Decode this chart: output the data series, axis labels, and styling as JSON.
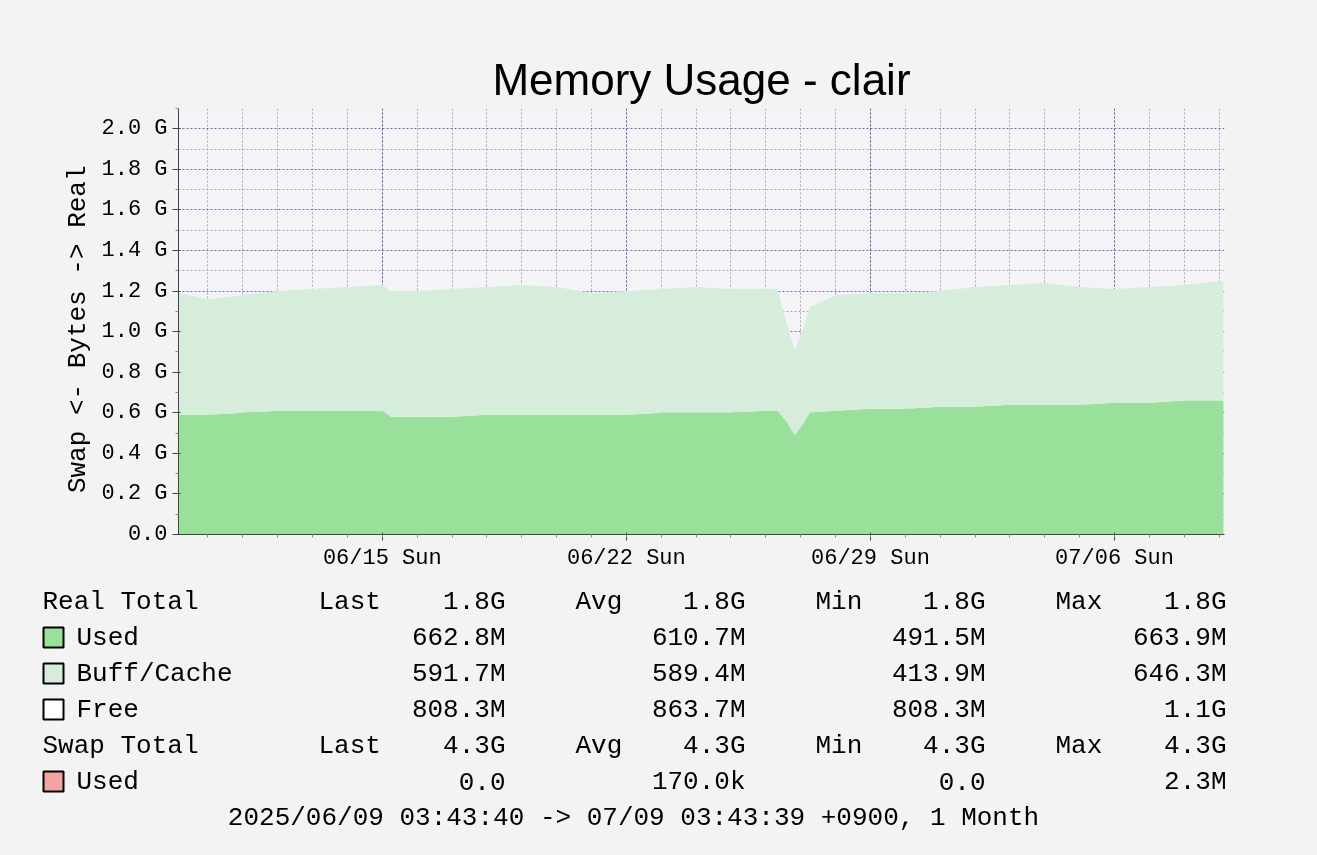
{
  "chart_data": {
    "type": "area",
    "stacked": true,
    "title": "Memory Usage - clair",
    "ylabel": "Swap <-  Bytes -> Real",
    "x": [
      "2025-06-09T04:00",
      "2025-06-10",
      "2025-06-11",
      "2025-06-12",
      "2025-06-13",
      "2025-06-14",
      "2025-06-15",
      "2025-06-15T06:00",
      "2025-06-16",
      "2025-06-17",
      "2025-06-18",
      "2025-06-19",
      "2025-06-20",
      "2025-06-21",
      "2025-06-22",
      "2025-06-23",
      "2025-06-24",
      "2025-06-25",
      "2025-06-26",
      "2025-06-26T08:00",
      "2025-06-26T14:00",
      "2025-06-26T20:00",
      "2025-06-27T02:00",
      "2025-06-27T06:00",
      "2025-06-28",
      "2025-06-29",
      "2025-06-30",
      "2025-07-01",
      "2025-07-02",
      "2025-07-03",
      "2025-07-04",
      "2025-07-05",
      "2025-07-06",
      "2025-07-07",
      "2025-07-08",
      "2025-07-09T03:00"
    ],
    "series": [
      {
        "name": "Used",
        "color": "#99e19b",
        "values": [
          0.59,
          0.59,
          0.6,
          0.61,
          0.61,
          0.61,
          0.61,
          0.58,
          0.58,
          0.58,
          0.59,
          0.59,
          0.59,
          0.59,
          0.59,
          0.6,
          0.6,
          0.6,
          0.61,
          0.61,
          0.56,
          0.49,
          0.55,
          0.6,
          0.61,
          0.62,
          0.62,
          0.63,
          0.63,
          0.64,
          0.64,
          0.64,
          0.65,
          0.65,
          0.66,
          0.66
        ]
      },
      {
        "name": "Buff/Cache",
        "color": "#d7eddc",
        "values": [
          0.6,
          0.57,
          0.58,
          0.59,
          0.6,
          0.61,
          0.62,
          0.62,
          0.62,
          0.63,
          0.63,
          0.64,
          0.63,
          0.6,
          0.61,
          0.61,
          0.62,
          0.61,
          0.6,
          0.6,
          0.49,
          0.42,
          0.47,
          0.52,
          0.57,
          0.57,
          0.57,
          0.57,
          0.59,
          0.59,
          0.6,
          0.58,
          0.56,
          0.57,
          0.57,
          0.59
        ]
      },
      {
        "name": "Free",
        "color": "#ffffff",
        "values": [
          null,
          null,
          null,
          null,
          null,
          null,
          null,
          null,
          null,
          null,
          null,
          null,
          null,
          null,
          null,
          null,
          null,
          null,
          null,
          null,
          null,
          null,
          null,
          null,
          null,
          null,
          null,
          null,
          null,
          null,
          null,
          null,
          null,
          null,
          null,
          null
        ]
      },
      {
        "name": "Used",
        "color": "#f4a3a3",
        "values": [
          null,
          null,
          null,
          null,
          null,
          null,
          null,
          null,
          null,
          null,
          null,
          null,
          null,
          null,
          null,
          null,
          null,
          null,
          null,
          null,
          null,
          null,
          null,
          null,
          null,
          null,
          null,
          null,
          null,
          null,
          null,
          null,
          null,
          null,
          null,
          null
        ]
      }
    ],
    "xlim": [
      "2025-06-09T03:43",
      "2025-07-09T03:43"
    ],
    "xticks": [
      {
        "value": "2025-06-15",
        "label": "06/15 Sun"
      },
      {
        "value": "2025-06-22",
        "label": "06/22 Sun"
      },
      {
        "value": "2025-06-29",
        "label": "06/29 Sun"
      },
      {
        "value": "2025-07-06",
        "label": "07/06 Sun"
      }
    ],
    "ylim": [
      0,
      2.1
    ],
    "yticks": [
      {
        "value": 0,
        "label": "0.0"
      },
      {
        "value": 0.2,
        "label": "0.2 G"
      },
      {
        "value": 0.4,
        "label": "0.4 G"
      },
      {
        "value": 0.6,
        "label": "0.6 G"
      },
      {
        "value": 0.8,
        "label": "0.8 G"
      },
      {
        "value": 1.0,
        "label": "1.0 G"
      },
      {
        "value": 1.2,
        "label": "1.2 G"
      },
      {
        "value": 1.4,
        "label": "1.4 G"
      },
      {
        "value": 1.6,
        "label": "1.6 G"
      },
      {
        "value": 1.8,
        "label": "1.8 G"
      },
      {
        "value": 2.0,
        "label": "2.0 G"
      }
    ],
    "grid": true,
    "legend": "bottom",
    "annotations": [
      "Real Total      Last   1.8G     Avg   1.8G    Min   1.8G    Max   1.8G",
      "662.8M         610.7M        491.5M        663.9M",
      "591.7M         589.4M        413.9M        646.3M",
      "808.3M         863.7M        808.3M          1.1G",
      "Swap Total      Last   4.3G     Avg   4.3G    Min   4.3G    Max   4.3G",
      "0.0         170.0k           0.0          2.3M",
      "2025/06/09 03:43:40 -> 07/09 03:43:39 +0900, 1 Month"
    ]
  }
}
